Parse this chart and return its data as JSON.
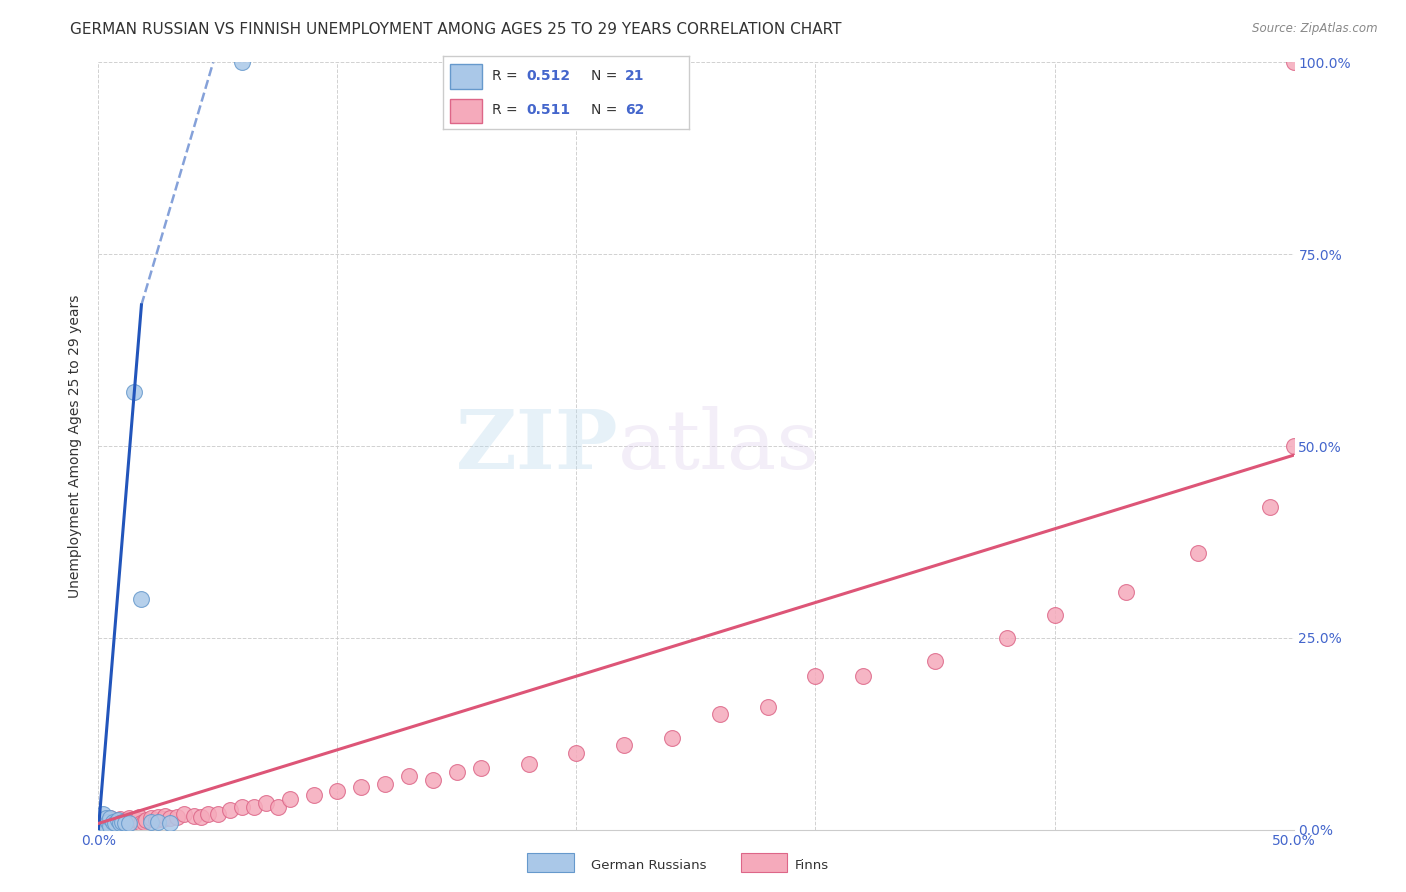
{
  "title": "GERMAN RUSSIAN VS FINNISH UNEMPLOYMENT AMONG AGES 25 TO 29 YEARS CORRELATION CHART",
  "source": "Source: ZipAtlas.com",
  "ylabel": "Unemployment Among Ages 25 to 29 years",
  "xlim": [
    0,
    0.5
  ],
  "ylim": [
    0,
    1.0
  ],
  "xtick_left_label": "0.0%",
  "xtick_right_label": "50.0%",
  "ytick_labels": [
    "0.0%",
    "25.0%",
    "50.0%",
    "75.0%",
    "100.0%"
  ],
  "ytick_vals": [
    0.0,
    0.25,
    0.5,
    0.75,
    1.0
  ],
  "watermark_zip": "ZIP",
  "watermark_atlas": "atlas",
  "legend_r1": "0.512",
  "legend_n1": "21",
  "legend_r2": "0.511",
  "legend_n2": "62",
  "group1_label": "German Russians",
  "group2_label": "Finns",
  "group1_color": "#aac8e8",
  "group2_color": "#f5aabb",
  "group1_edge": "#6699cc",
  "group2_edge": "#dd6688",
  "trendline1_color": "#2255bb",
  "trendline2_color": "#dd5577",
  "title_fontsize": 11,
  "axis_label_fontsize": 10,
  "tick_fontsize": 10,
  "legend_value_color": "#4466cc",
  "gr_x": [
    0.001,
    0.002,
    0.002,
    0.003,
    0.003,
    0.004,
    0.005,
    0.005,
    0.006,
    0.007,
    0.008,
    0.009,
    0.01,
    0.011,
    0.013,
    0.015,
    0.018,
    0.022,
    0.025,
    0.03,
    0.06
  ],
  "gr_y": [
    0.005,
    0.01,
    0.02,
    0.005,
    0.015,
    0.01,
    0.005,
    0.015,
    0.01,
    0.008,
    0.012,
    0.008,
    0.01,
    0.008,
    0.008,
    0.57,
    0.3,
    0.01,
    0.01,
    0.008,
    1.0
  ],
  "fi_x": [
    0.001,
    0.002,
    0.003,
    0.004,
    0.005,
    0.006,
    0.007,
    0.008,
    0.009,
    0.01,
    0.011,
    0.012,
    0.013,
    0.014,
    0.015,
    0.016,
    0.017,
    0.018,
    0.019,
    0.02,
    0.022,
    0.024,
    0.025,
    0.027,
    0.028,
    0.03,
    0.033,
    0.036,
    0.04,
    0.043,
    0.046,
    0.05,
    0.055,
    0.06,
    0.065,
    0.07,
    0.075,
    0.08,
    0.09,
    0.1,
    0.11,
    0.12,
    0.13,
    0.14,
    0.15,
    0.16,
    0.18,
    0.2,
    0.22,
    0.24,
    0.26,
    0.28,
    0.3,
    0.32,
    0.35,
    0.38,
    0.4,
    0.43,
    0.46,
    0.49,
    0.5,
    0.5
  ],
  "fi_y": [
    0.01,
    0.008,
    0.012,
    0.006,
    0.015,
    0.008,
    0.012,
    0.01,
    0.014,
    0.008,
    0.01,
    0.012,
    0.015,
    0.01,
    0.014,
    0.012,
    0.016,
    0.008,
    0.01,
    0.013,
    0.015,
    0.012,
    0.016,
    0.014,
    0.018,
    0.015,
    0.016,
    0.02,
    0.018,
    0.016,
    0.02,
    0.02,
    0.025,
    0.03,
    0.03,
    0.035,
    0.03,
    0.04,
    0.045,
    0.05,
    0.055,
    0.06,
    0.07,
    0.065,
    0.075,
    0.08,
    0.085,
    0.1,
    0.11,
    0.12,
    0.15,
    0.16,
    0.2,
    0.2,
    0.22,
    0.25,
    0.28,
    0.31,
    0.36,
    0.42,
    0.5,
    1.0
  ]
}
